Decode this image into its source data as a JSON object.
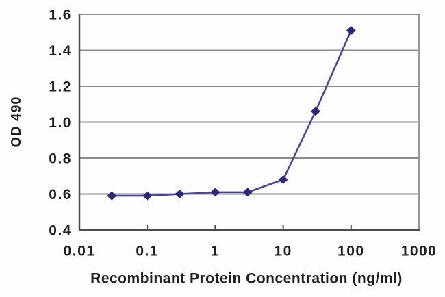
{
  "chart_data": {
    "type": "line",
    "title": "",
    "xlabel": "Recombinant Protein Concentration (ng/ml)",
    "ylabel": "OD 490",
    "x_scale": "log10",
    "xlim": [
      0.01,
      1000
    ],
    "ylim": [
      0.4,
      1.6
    ],
    "x_ticks": [
      0.01,
      0.1,
      1,
      10,
      100,
      1000
    ],
    "x_tick_labels": [
      "0.01",
      "0.1",
      "1",
      "10",
      "100",
      "1000"
    ],
    "y_ticks": [
      0.4,
      0.6,
      0.8,
      1.0,
      1.2,
      1.4,
      1.6
    ],
    "y_tick_labels": [
      "0.4",
      "0.6",
      "0.8",
      "1.0",
      "1.2",
      "1.4",
      "1.6"
    ],
    "grid": "horizontal",
    "legend": "none",
    "series": [
      {
        "name": "OD 490 signal",
        "marker": "diamond",
        "line_color": "#45459e",
        "marker_color": "#2a2a78",
        "x": [
          0.03,
          0.1,
          0.3,
          1,
          3,
          10,
          30,
          100
        ],
        "y": [
          0.59,
          0.59,
          0.6,
          0.61,
          0.61,
          0.68,
          1.06,
          1.51
        ]
      }
    ]
  },
  "colors": {
    "background": "#fefefe",
    "gridline": "#8c8c8c",
    "border": "#999999",
    "axis": "#4d4d4d",
    "text": "#1f1f1f"
  }
}
